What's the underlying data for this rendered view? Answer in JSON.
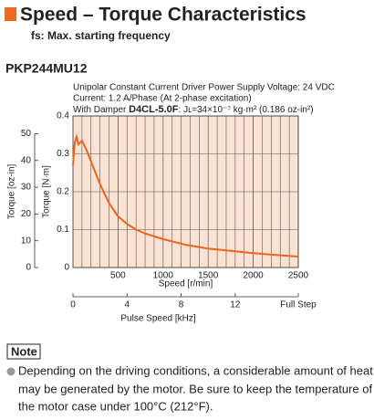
{
  "header": {
    "title": "Speed – Torque Characteristics",
    "subtitle": "fs: Max. starting frequency",
    "model": "PKP244MU12",
    "conditions": [
      "Unipolar Constant Current Driver  Power Supply Voltage: 24 VDC",
      "Current: 1.2 A/Phase (At 2-phase excitation)"
    ],
    "damper": {
      "prefix": "With Damper ",
      "part": "D4CL-5.0F",
      "suffix": ": Jʟ=34×10⁻⁷ kg·m² (0.186 oz-in²)"
    }
  },
  "chart_data": {
    "type": "line",
    "x_label": "Speed [r/min]",
    "y_label": "Torque [N·m]",
    "y2_label": "Torque [oz-in]",
    "x2_label": "Pulse Speed [kHz]",
    "x2_end_label": "Full Step",
    "xlim": [
      0,
      2500
    ],
    "xticks": [
      500,
      1000,
      1500,
      2000,
      2500
    ],
    "x_grid": [
      100,
      200,
      300,
      400,
      500,
      600,
      700,
      800,
      900,
      1000,
      1100,
      1200,
      1300,
      1400,
      1500,
      1600,
      1700,
      1800,
      1900,
      2000,
      2100,
      2200,
      2300,
      2400
    ],
    "ylim": [
      0,
      0.4
    ],
    "yticks": [
      0,
      0.1,
      0.2,
      0.3,
      0.4
    ],
    "y2lim": [
      0,
      56.64
    ],
    "y2ticks": [
      0,
      10,
      20,
      30,
      40,
      50
    ],
    "x2lim": [
      0,
      16.67
    ],
    "x2ticks": [
      0,
      4,
      8,
      12
    ],
    "grid": true,
    "background": "#fbe3d4",
    "series": [
      {
        "name": "Torque",
        "color": "#f0641e",
        "x": [
          0,
          20,
          40,
          60,
          80,
          100,
          150,
          200,
          250,
          300,
          400,
          500,
          600,
          700,
          800,
          1000,
          1250,
          1500,
          1750,
          2000,
          2250,
          2500
        ],
        "values": [
          0.27,
          0.33,
          0.345,
          0.325,
          0.33,
          0.335,
          0.31,
          0.28,
          0.25,
          0.22,
          0.17,
          0.135,
          0.115,
          0.1,
          0.09,
          0.075,
          0.06,
          0.05,
          0.044,
          0.038,
          0.033,
          0.029
        ]
      }
    ]
  },
  "note": {
    "label": "Note",
    "lines": [
      "Depending on the driving conditions, a considerable amount of heat",
      "may be generated by the motor. Be sure to keep the temperature of",
      "the motor case under 100°C (212°F)."
    ]
  }
}
